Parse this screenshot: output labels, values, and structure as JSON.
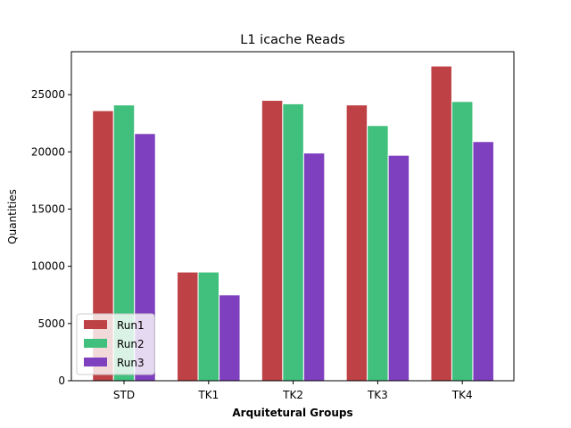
{
  "chart_data": {
    "type": "bar",
    "title": "L1 icache Reads",
    "xlabel": "Arquitetural Groups",
    "ylabel": "Quantities",
    "categories": [
      "STD",
      "TK1",
      "TK2",
      "TK3",
      "TK4"
    ],
    "series": [
      {
        "name": "Run1",
        "color": "#be4145",
        "values": [
          23600,
          9500,
          24500,
          24100,
          27500
        ]
      },
      {
        "name": "Run2",
        "color": "#40bf7d",
        "values": [
          24100,
          9500,
          24200,
          22300,
          24400
        ]
      },
      {
        "name": "Run3",
        "color": "#7f40bf",
        "values": [
          21600,
          7500,
          19900,
          19700,
          20900
        ]
      }
    ],
    "ylim": [
      0,
      28750
    ],
    "yticks": [
      0,
      5000,
      10000,
      15000,
      20000,
      25000
    ],
    "grid": false,
    "legend_position": "lower-left"
  }
}
